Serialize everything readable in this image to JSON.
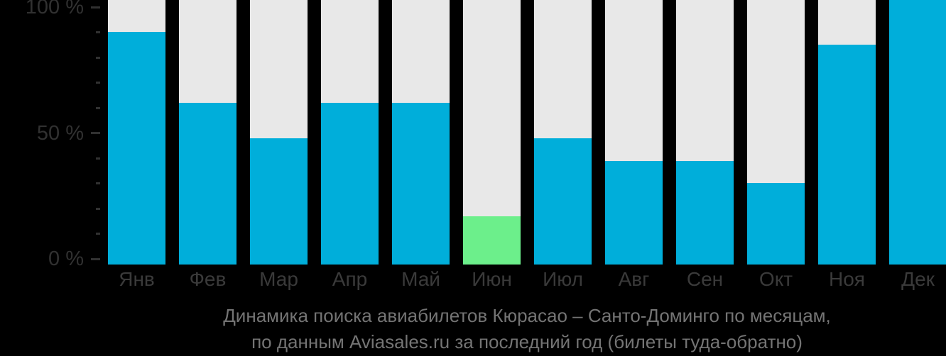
{
  "page": {
    "background": "#000000"
  },
  "chart_data": {
    "type": "bar",
    "categories": [
      "Янв",
      "Фев",
      "Мар",
      "Апр",
      "Май",
      "Июн",
      "Июл",
      "Авг",
      "Сен",
      "Окт",
      "Ноя",
      "Дек"
    ],
    "values": [
      90,
      62,
      48,
      62,
      62,
      17,
      48,
      39,
      39,
      30,
      85,
      100
    ],
    "highlight_index": 5,
    "title": "Динамика поиска авиабилетов Кюрасао – Санто-Доминго по месяцам, по данным Aviasales.ru за последний год (билеты туда-обратно)",
    "xlabel": "",
    "ylabel": "",
    "ylim": [
      0,
      100
    ],
    "yticks_major": [
      0,
      50,
      100
    ],
    "yticks_minor": [
      10,
      20,
      30,
      40,
      60,
      70,
      80,
      90
    ],
    "ytick_labels": {
      "0": "0 %",
      "50": "50 %",
      "100": "100 %"
    },
    "legend": false,
    "grid": false,
    "colors": {
      "bar": "#00AEDA",
      "highlight": "#6CEF8B",
      "track": "#E8E8E8",
      "axis_text": "#313131",
      "month_text": "#3a3a3a",
      "caption_text": "#747474",
      "background": "#000000"
    }
  },
  "caption": {
    "line1": "Динамика поиска авиабилетов Кюрасао – Санто-Доминго по месяцам,",
    "line2": "по данным Aviasales.ru за последний год (билеты туда-обратно)"
  }
}
